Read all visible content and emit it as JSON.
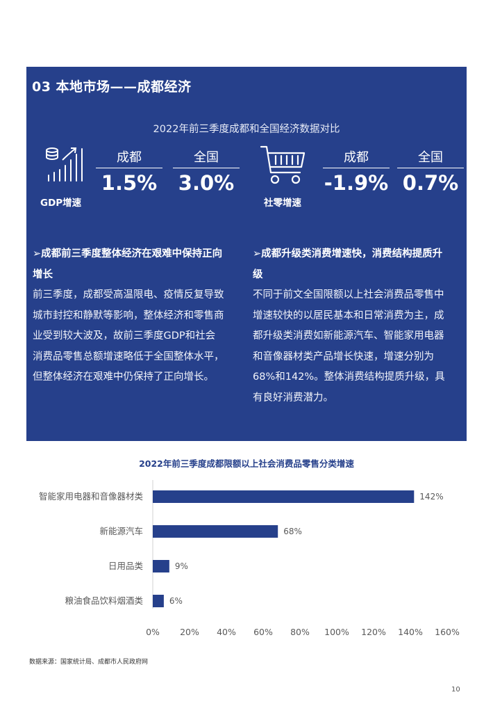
{
  "section": {
    "title": "03 本地市场——成都经济"
  },
  "comparison": {
    "subtitle": "2022年前三季度成都和全国经济数据对比",
    "gdp": {
      "label": "GDP增速",
      "icon": "gdp-growth-icon",
      "city_head": "成都",
      "city_value": "1.5%",
      "nation_head": "全国",
      "nation_value": "3.0%"
    },
    "retail": {
      "label": "社零增速",
      "icon": "shopping-cart-icon",
      "city_head": "成都",
      "city_value": "-1.9%",
      "nation_head": "全国",
      "nation_value": "0.7%"
    }
  },
  "left_column": {
    "heading_l1": "➢成都前三季度整体经济在艰难中保持正向",
    "heading_l2": "增长",
    "body": [
      "前三季度，成都受高温限电、疫情反复导致",
      "城市封控和静默等影响，整体经济和零售商",
      "业受到较大波及，故前三季度GDP和社会",
      "消费品零售总额增速略低于全国整体水平，",
      "但整体经济在艰难中仍保持了正向增长。"
    ]
  },
  "right_column": {
    "heading_l1": "➢成都升级类消费增速快，消费结构提质升",
    "heading_l2": "级",
    "body": [
      "不同于前文全国限额以上社会消费品零售中",
      "增速较快的以居民基本和日常消费为主，成",
      "都升级类消费如新能源汽车、智能家用电器",
      "和音像器材类产品增长快速，增速分别为",
      "68%和142%。整体消费结构提质升级，具",
      "有良好消费潜力。"
    ]
  },
  "chart_data": {
    "type": "bar",
    "orientation": "horizontal",
    "title": "2022年前三季度成都限额以上社会消费品零售分类增速",
    "categories": [
      "智能家用电器和音像器材类",
      "新能源汽车",
      "日用品类",
      "粮油食品饮料烟酒类"
    ],
    "values": [
      142,
      68,
      9,
      6
    ],
    "value_labels": [
      "142%",
      "68%",
      "9%",
      "6%"
    ],
    "xlim": [
      0,
      160
    ],
    "xticks": [
      "0%",
      "20%",
      "40%",
      "60%",
      "80%",
      "100%",
      "120%",
      "140%",
      "160%"
    ],
    "grid": false,
    "bar_color": "#26408b"
  },
  "footer": {
    "source": "数据来源：国家统计局、成都市人民政府网",
    "page_number": "10"
  }
}
